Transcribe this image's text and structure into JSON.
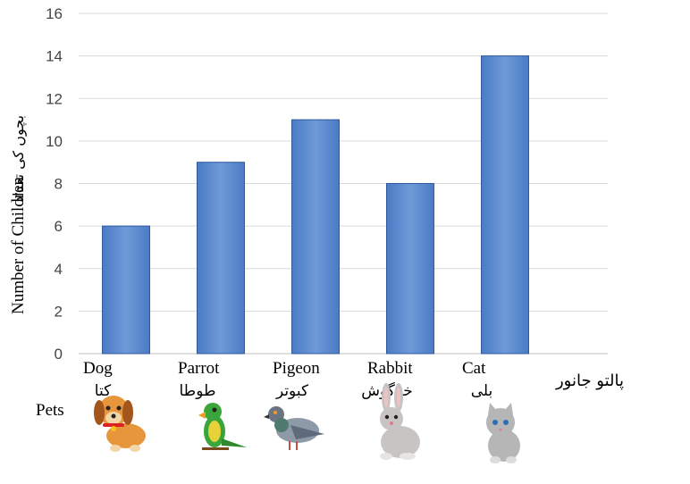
{
  "chart_data": {
    "type": "bar",
    "categories": [
      "Dog",
      "Parrot",
      "Pigeon",
      "Rabbit",
      "Cat"
    ],
    "categories_urdu": [
      "کتا",
      "طوطا",
      "کبوتر",
      "خرگوش",
      "بلی"
    ],
    "values": [
      6,
      9,
      11,
      8,
      14
    ],
    "ylabel": "Number of Children",
    "ylabel_urdu": "بچوں کی تعداد",
    "xlabel": "Pets",
    "xlabel_urdu": "پالتو جانور",
    "ylim": [
      0,
      16
    ],
    "yticks": [
      0,
      2,
      4,
      6,
      8,
      10,
      12,
      14,
      16
    ],
    "grid": true,
    "bar_color": "#4a7bc4",
    "bar_color_light": "#6f9ad9",
    "bar_edge_color": "#2f5a9e",
    "icons": [
      "dog-icon",
      "parrot-icon",
      "pigeon-icon",
      "rabbit-icon",
      "cat-icon"
    ]
  }
}
